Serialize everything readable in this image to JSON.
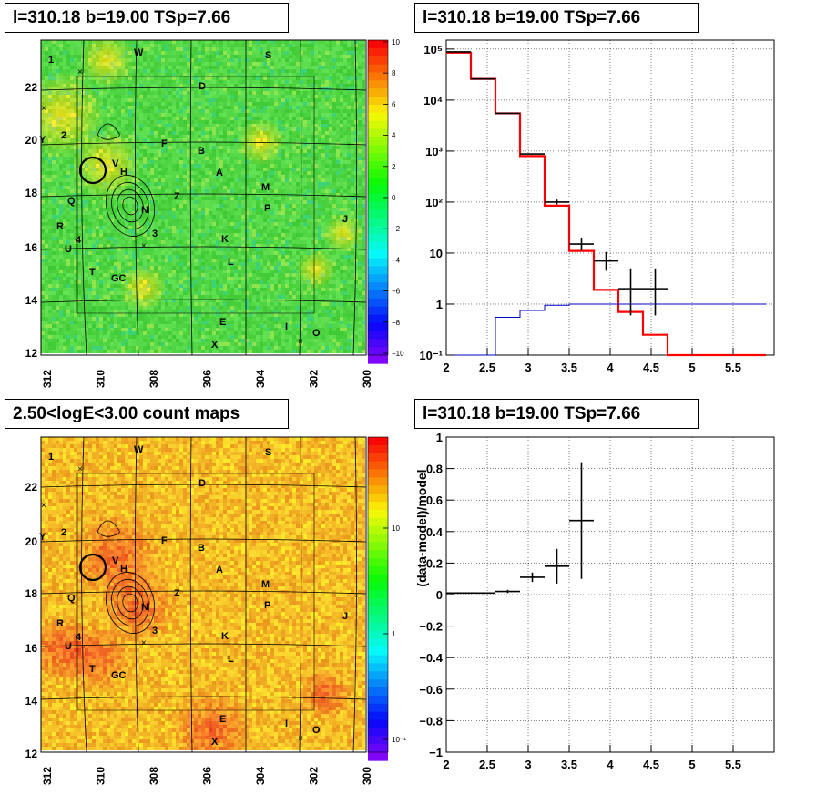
{
  "panels": {
    "top_left": {
      "title": "l=310.18 b=19.00 TSp=7.66"
    },
    "top_right": {
      "title": "l=310.18 b=19.00 TSp=7.66"
    },
    "bottom_left": {
      "title": "2.50<logE<3.00 count maps"
    },
    "bottom_right": {
      "title": "l=310.18 b=19.00 TSp=7.66"
    }
  },
  "colors": {
    "map_green": "#3fd23a",
    "map_orange": "#f0a020",
    "model_red": "#ff0000",
    "bkg_blue": "#0000cc",
    "data_black": "#000000"
  },
  "map_axes": {
    "x_ticks": [
      "312",
      "310",
      "308",
      "306",
      "304",
      "302",
      "300"
    ],
    "y_ticks": [
      "22",
      "20",
      "18",
      "16",
      "14",
      "12"
    ]
  },
  "source_labels": [
    "1",
    "W",
    "S",
    "D",
    "Y",
    "2",
    "F",
    "B",
    "V",
    "H",
    "A",
    "M",
    "Q",
    "Z",
    "N",
    "P",
    "J",
    "R",
    "4",
    "3",
    "K",
    "U",
    "L",
    "T",
    "GC",
    "E",
    "I",
    "O",
    "X"
  ],
  "colorbar_top": {
    "ticks": [
      "10",
      "8",
      "6",
      "4",
      "2",
      "0",
      "−2",
      "−4",
      "−6",
      "−8",
      "−10"
    ]
  },
  "colorbar_bottom": {
    "ticks": [
      "10",
      "1",
      "10⁻¹"
    ],
    "scale": "log"
  },
  "chart_data": [
    {
      "type": "line",
      "panel": "top_right",
      "yscale": "log",
      "xlim": [
        2,
        6
      ],
      "ylim": [
        0.1,
        150000
      ],
      "x_ticks": [
        "2",
        "2.5",
        "3",
        "3.5",
        "4",
        "4.5",
        "5",
        "5.5"
      ],
      "y_ticks": [
        "10⁵",
        "10⁴",
        "10³",
        "10²",
        "10",
        "1",
        "10⁻¹"
      ],
      "grid": true,
      "series": [
        {
          "role": "model",
          "edges": [
            2.0,
            2.3,
            2.6,
            2.9,
            3.2,
            3.5,
            3.8,
            4.1,
            4.4,
            4.7,
            5.0,
            5.3,
            5.6,
            5.9
          ],
          "values": [
            85000,
            26000,
            5500,
            800,
            85,
            11,
            1.9,
            0.7,
            0.25,
            0.08,
            0.08,
            0.08,
            0.08
          ]
        },
        {
          "role": "background",
          "edges": [
            2.0,
            2.3,
            2.6,
            2.9,
            3.2,
            3.5,
            3.8,
            4.1,
            4.4,
            4.7,
            5.0,
            5.3,
            5.6,
            5.9
          ],
          "values": [
            0.05,
            0.1,
            0.55,
            0.75,
            0.95,
            1.0,
            1.0,
            1.0,
            1.0,
            1.0,
            1.0,
            1.0,
            1.0
          ]
        },
        {
          "role": "data",
          "x": [
            2.15,
            2.45,
            2.75,
            3.05,
            3.35,
            3.65,
            3.95,
            4.25,
            4.55
          ],
          "y": [
            88000,
            26000,
            5500,
            880,
            100,
            15,
            7,
            2,
            2
          ],
          "xerr": 0.15,
          "yerr_lo": [
            0,
            0,
            0,
            0,
            10,
            4,
            2.5,
            1.4,
            1.4
          ],
          "yerr_hi": [
            0,
            0,
            0,
            0,
            12,
            5,
            3.5,
            3,
            3
          ]
        }
      ]
    },
    {
      "type": "scatter",
      "panel": "bottom_right",
      "xlim": [
        2,
        6
      ],
      "ylim": [
        -1,
        1
      ],
      "ylabel": "(data-model)/model",
      "x_ticks": [
        "2",
        "2.5",
        "3",
        "3.5",
        "4",
        "4.5",
        "5",
        "5.5"
      ],
      "y_ticks": [
        "1",
        "0.8",
        "0.6",
        "0.4",
        "0.2",
        "0",
        "−0.2",
        "−0.4",
        "−0.6",
        "−0.8",
        "−1"
      ],
      "grid": true,
      "series": [
        {
          "x": [
            2.15,
            2.45,
            2.75,
            3.05,
            3.35,
            3.65
          ],
          "y": [
            0.01,
            0.01,
            0.02,
            0.11,
            0.18,
            0.47
          ],
          "xerr": 0.15,
          "yerr": [
            0.005,
            0.005,
            0.01,
            0.03,
            0.11,
            0.37
          ]
        }
      ]
    }
  ]
}
